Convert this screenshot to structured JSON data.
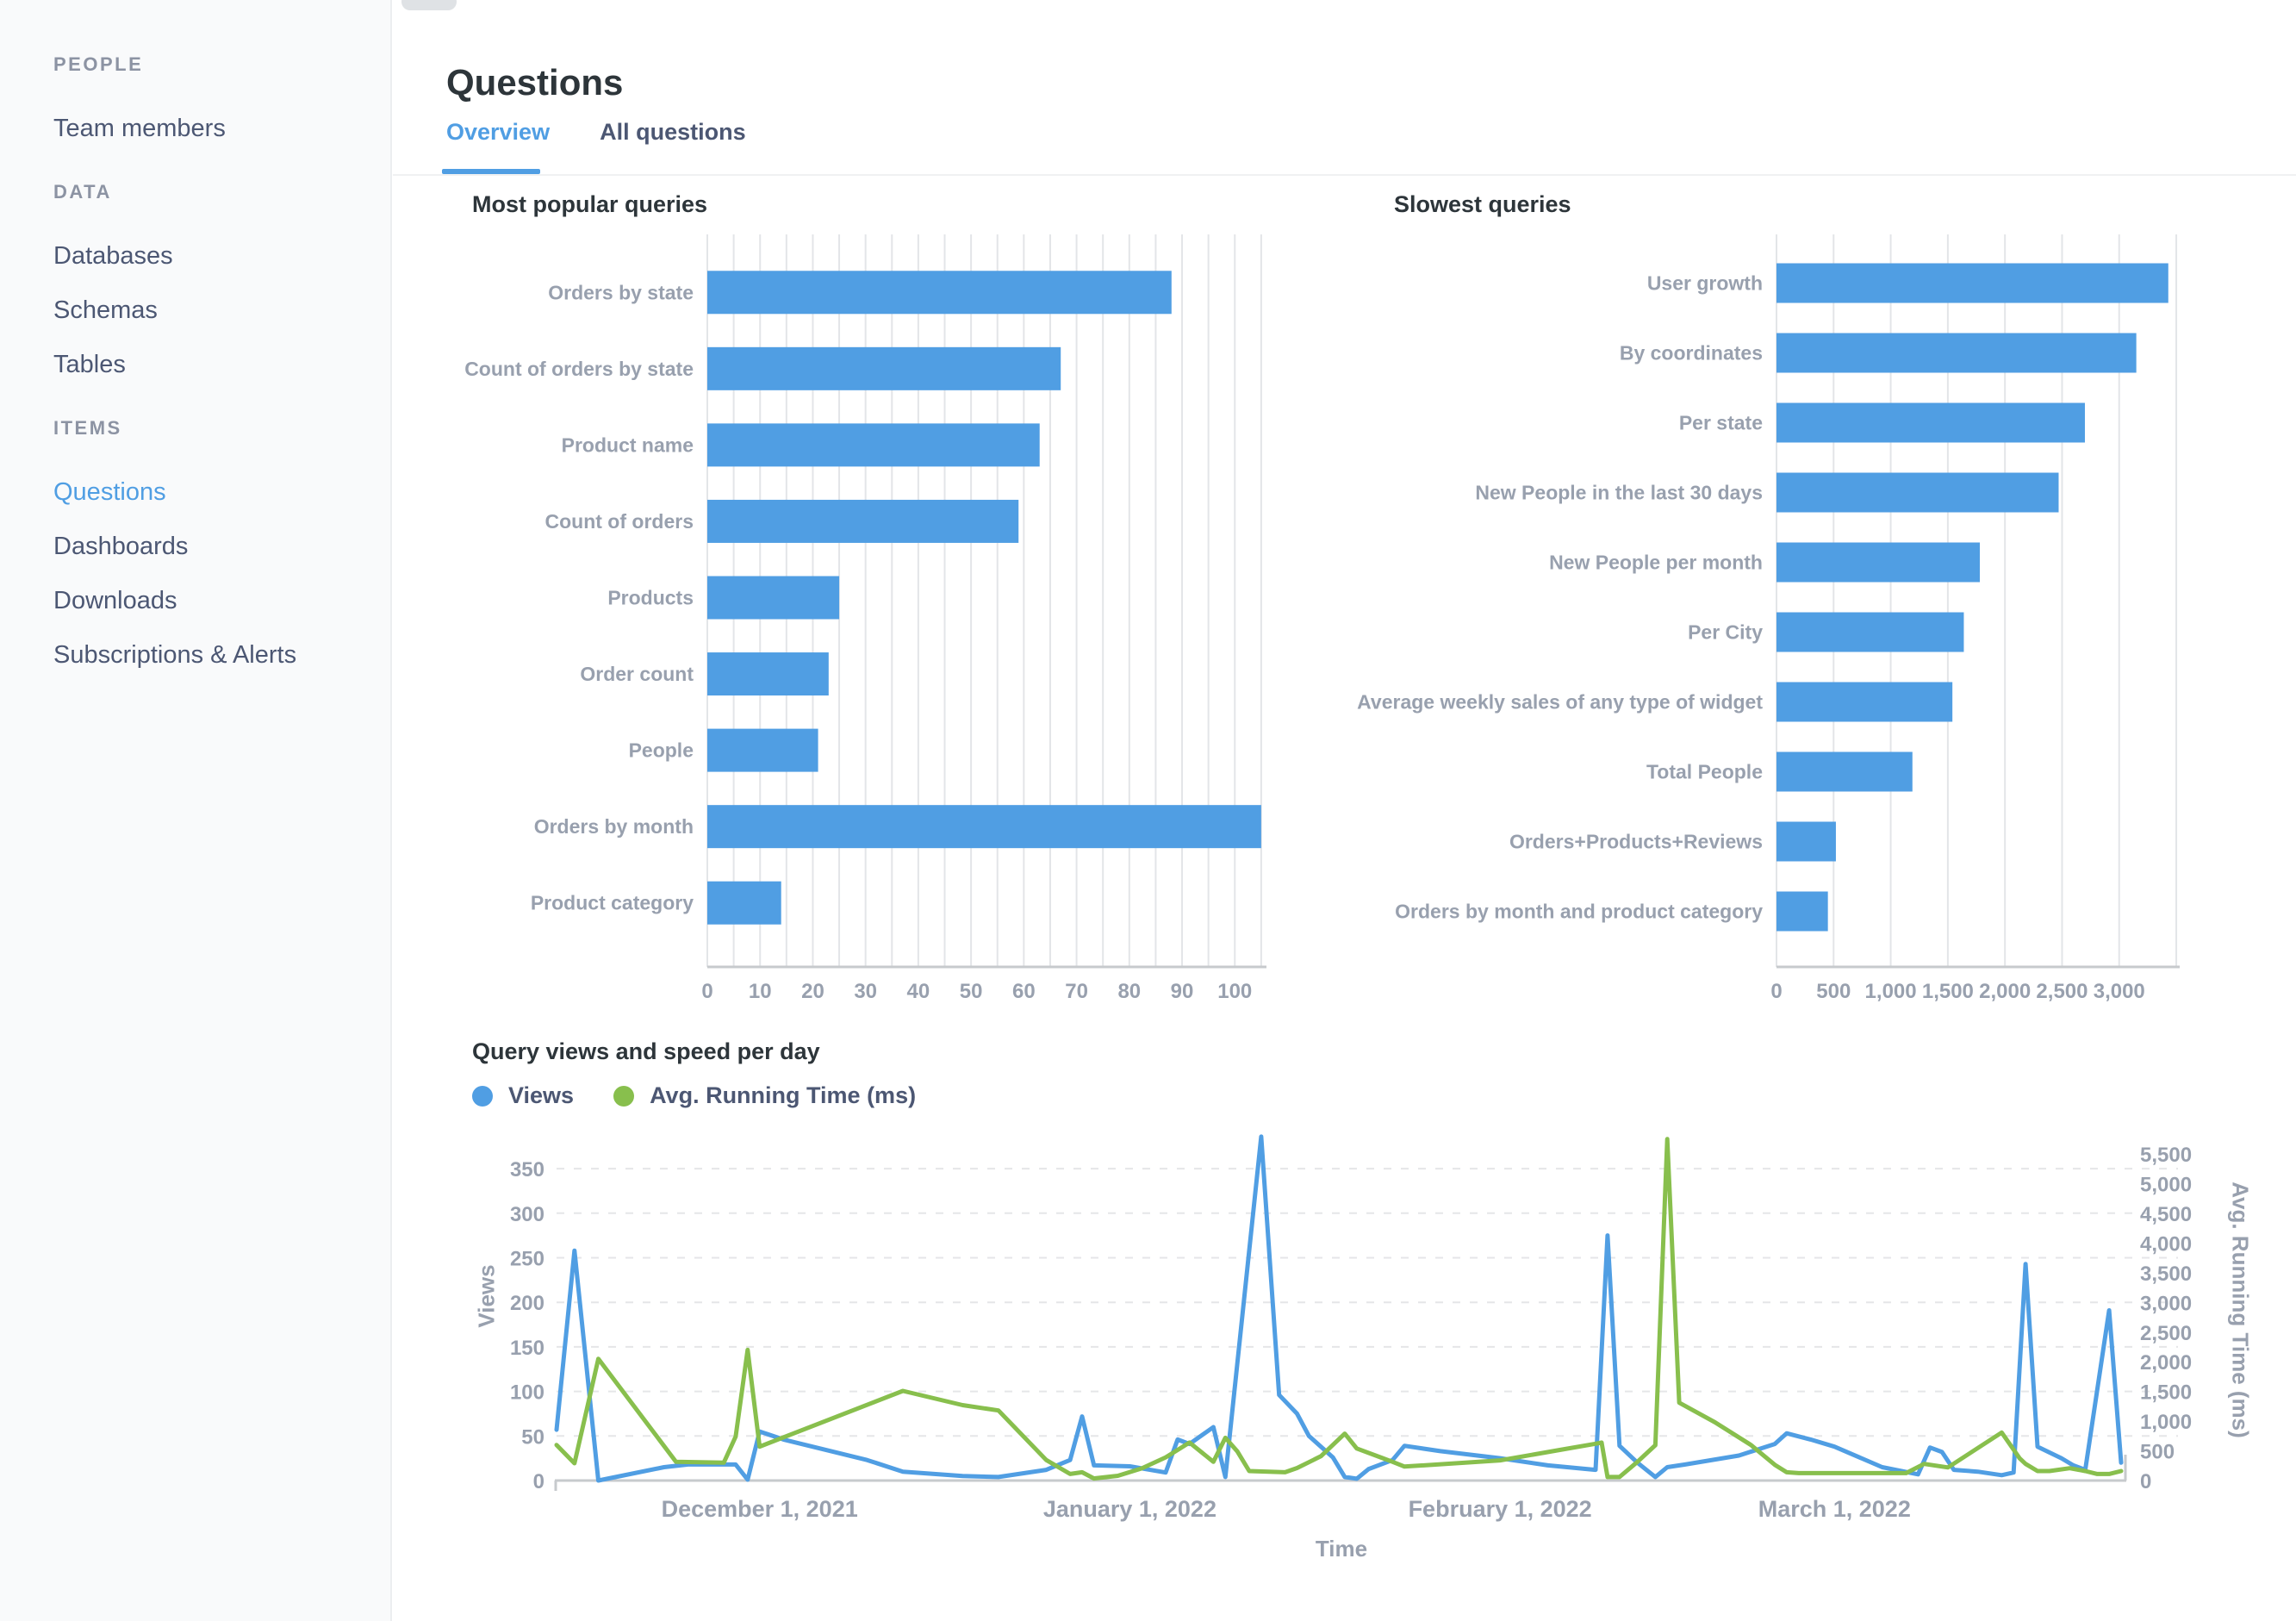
{
  "colors": {
    "accent_blue": "#509ee3",
    "series_green": "#88bf4d",
    "text_dark": "#2d353a",
    "text_navy": "#4c5773",
    "text_gray": "#98a0ae",
    "grid_gray": "#e3e5e8",
    "axis_gray": "#c7cacd",
    "sidebar_bg": "#f9fafb"
  },
  "sidebar": {
    "sections": [
      {
        "title": "PEOPLE",
        "items": [
          {
            "label": "Team members",
            "active": false
          }
        ]
      },
      {
        "title": "DATA",
        "items": [
          {
            "label": "Databases",
            "active": false
          },
          {
            "label": "Schemas",
            "active": false
          },
          {
            "label": "Tables",
            "active": false
          }
        ]
      },
      {
        "title": "ITEMS",
        "items": [
          {
            "label": "Questions",
            "active": true
          },
          {
            "label": "Dashboards",
            "active": false
          },
          {
            "label": "Downloads",
            "active": false
          },
          {
            "label": "Subscriptions & Alerts",
            "active": false
          }
        ]
      }
    ]
  },
  "header": {
    "title": "Questions",
    "tabs": [
      {
        "label": "Overview",
        "active": true
      },
      {
        "label": "All questions",
        "active": false
      }
    ]
  },
  "chart_data": [
    {
      "type": "bar",
      "orientation": "horizontal",
      "title": "Most popular queries",
      "categories": [
        "Orders by state",
        "Count of orders by state",
        "Product name",
        "Count of orders",
        "Products",
        "Order count",
        "People",
        "Orders by month",
        "Product category"
      ],
      "values": [
        88,
        67,
        63,
        59,
        25,
        23,
        21,
        105,
        14
      ],
      "xlim": [
        0,
        106
      ],
      "xtick_step": 10,
      "grid_step": 5,
      "xticks": [
        "0",
        "10",
        "20",
        "30",
        "40",
        "50",
        "60",
        "70",
        "80",
        "90",
        "100"
      ],
      "legend_position": "none",
      "grid": true
    },
    {
      "type": "bar",
      "orientation": "horizontal",
      "title": "Slowest queries",
      "categories": [
        "User growth",
        "By coordinates",
        "Per state",
        "New People in the last 30 days",
        "New People per month",
        "Per City",
        "Average weekly sales of any type of widget",
        "Total People",
        "Orders+Products+Reviews",
        "Orders by month and product category"
      ],
      "values": [
        3430,
        3150,
        2700,
        2470,
        1780,
        1640,
        1540,
        1190,
        520,
        450
      ],
      "xlim": [
        0,
        3560
      ],
      "xtick_step": 500,
      "grid_step": 500,
      "xticks": [
        "0",
        "500",
        "1,000",
        "1,500",
        "2,000",
        "2,500",
        "3,000"
      ],
      "legend_position": "none",
      "grid": true
    },
    {
      "type": "line",
      "title": "Query views and speed per day",
      "xlabel": "Time",
      "grid": "horizontal-dashed",
      "legend_position": "top-left",
      "y_left": {
        "label": "Views",
        "min": 0,
        "max": 350,
        "step": 50,
        "ticks": [
          "0",
          "50",
          "100",
          "150",
          "200",
          "250",
          "300",
          "350"
        ]
      },
      "y_right": {
        "label": "Avg. Running Time (ms)",
        "min": 0,
        "max": 5500,
        "step": 500,
        "ticks": [
          "0",
          "500",
          "1,000",
          "1,500",
          "2,000",
          "2,500",
          "3,000",
          "3,500",
          "4,000",
          "4,500",
          "5,000",
          "5,500"
        ]
      },
      "x_axis": {
        "start_date": "November 14, 2021",
        "end_date": "March 25, 2022",
        "total_days": 131,
        "labels": [
          "December 1, 2021",
          "January 1, 2022",
          "February 1, 2022",
          "March 1, 2022"
        ],
        "label_days": [
          17,
          48,
          79,
          107
        ]
      },
      "series": [
        {
          "name": "Views",
          "axis": "left",
          "color": "#509ee3",
          "points": [
            [
              0,
              57
            ],
            [
              1.5,
              258
            ],
            [
              3.5,
              0
            ],
            [
              9,
              15
            ],
            [
              11,
              18
            ],
            [
              15,
              18
            ],
            [
              16,
              1
            ],
            [
              17,
              55
            ],
            [
              19,
              46
            ],
            [
              26,
              23
            ],
            [
              29,
              10
            ],
            [
              32,
              7
            ],
            [
              34,
              5
            ],
            [
              37,
              4
            ],
            [
              41,
              12
            ],
            [
              43,
              23
            ],
            [
              44,
              72
            ],
            [
              45,
              17
            ],
            [
              48,
              16
            ],
            [
              51,
              9
            ],
            [
              52,
              46
            ],
            [
              53,
              41
            ],
            [
              55,
              60
            ],
            [
              56,
              4
            ],
            [
              59,
              386
            ],
            [
              60.5,
              96
            ],
            [
              62,
              75
            ],
            [
              63,
              50
            ],
            [
              65,
              26
            ],
            [
              66,
              4
            ],
            [
              67,
              2
            ],
            [
              68,
              13
            ],
            [
              70,
              23
            ],
            [
              71,
              39
            ],
            [
              74,
              33
            ],
            [
              79,
              25
            ],
            [
              83,
              17
            ],
            [
              87,
              12
            ],
            [
              88,
              275
            ],
            [
              89,
              39
            ],
            [
              90.5,
              20
            ],
            [
              92,
              4
            ],
            [
              93,
              15
            ],
            [
              94.5,
              18
            ],
            [
              99,
              28
            ],
            [
              102,
              41
            ],
            [
              103,
              53
            ],
            [
              105,
              46
            ],
            [
              107,
              38
            ],
            [
              111,
              15
            ],
            [
              114,
              7
            ],
            [
              115,
              37
            ],
            [
              116,
              32
            ],
            [
              117,
              12
            ],
            [
              119,
              10
            ],
            [
              121,
              6
            ],
            [
              122,
              9
            ],
            [
              123,
              243
            ],
            [
              124,
              38
            ],
            [
              126,
              25
            ],
            [
              127,
              17
            ],
            [
              128,
              12
            ],
            [
              130,
              191
            ],
            [
              131,
              20
            ]
          ]
        },
        {
          "name": "Avg. Running Time (ms)",
          "axis": "right",
          "color": "#88bf4d",
          "points": [
            [
              0,
              600
            ],
            [
              1.5,
              290
            ],
            [
              3.5,
              2050
            ],
            [
              10,
              315
            ],
            [
              14,
              300
            ],
            [
              15,
              740
            ],
            [
              16,
              2200
            ],
            [
              17,
              570
            ],
            [
              29,
              1510
            ],
            [
              34,
              1270
            ],
            [
              37,
              1180
            ],
            [
              41,
              345
            ],
            [
              43,
              110
            ],
            [
              44,
              140
            ],
            [
              45,
              35
            ],
            [
              47,
              80
            ],
            [
              49,
              205
            ],
            [
              51,
              390
            ],
            [
              52,
              515
            ],
            [
              53,
              640
            ],
            [
              55,
              315
            ],
            [
              56,
              720
            ],
            [
              57,
              490
            ],
            [
              58,
              160
            ],
            [
              61,
              140
            ],
            [
              62,
              210
            ],
            [
              64,
              410
            ],
            [
              66,
              790
            ],
            [
              67,
              540
            ],
            [
              69,
              390
            ],
            [
              70,
              315
            ],
            [
              71,
              235
            ],
            [
              79,
              340
            ],
            [
              84,
              515
            ],
            [
              87,
              620
            ],
            [
              87.5,
              640
            ],
            [
              88,
              60
            ],
            [
              89,
              60
            ],
            [
              90.5,
              315
            ],
            [
              92,
              595
            ],
            [
              93,
              5750
            ],
            [
              94,
              1310
            ],
            [
              97,
              980
            ],
            [
              100,
              600
            ],
            [
              102,
              265
            ],
            [
              103,
              140
            ],
            [
              104,
              125
            ],
            [
              113,
              125
            ],
            [
              114.5,
              280
            ],
            [
              116.5,
              220
            ],
            [
              121,
              808
            ],
            [
              122.5,
              375
            ],
            [
              123,
              280
            ],
            [
              124,
              160
            ],
            [
              125,
              160
            ],
            [
              126.7,
              207
            ],
            [
              128,
              160
            ],
            [
              129,
              110
            ],
            [
              130,
              110
            ],
            [
              131,
              160
            ]
          ]
        }
      ]
    }
  ]
}
